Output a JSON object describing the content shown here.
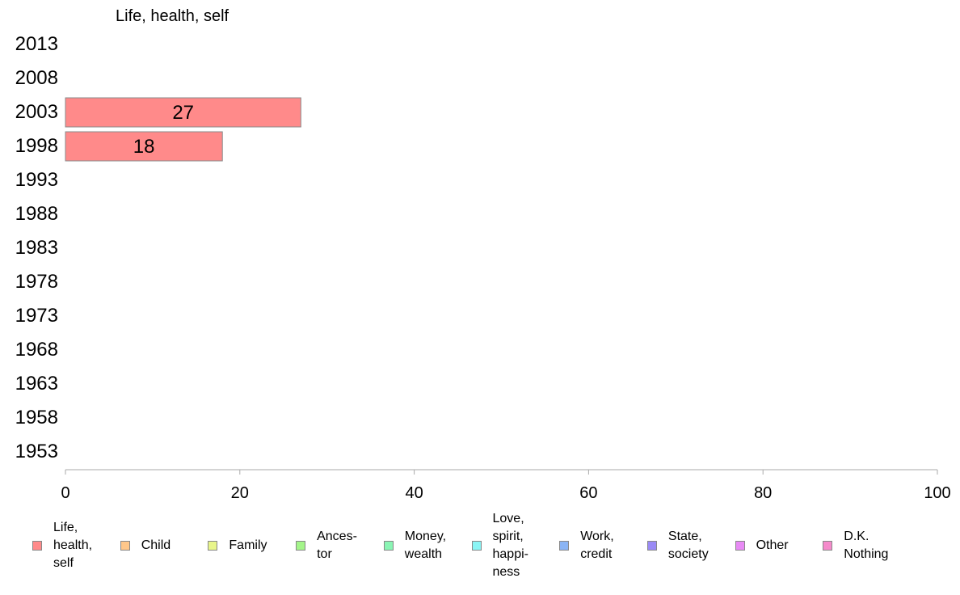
{
  "chart_data": {
    "type": "bar",
    "orientation": "horizontal",
    "title": "Life, health, self",
    "categories": [
      "2013",
      "2008",
      "2003",
      "1998",
      "1993",
      "1988",
      "1983",
      "1978",
      "1973",
      "1968",
      "1963",
      "1958",
      "1953"
    ],
    "series": [
      {
        "name": "Life,\nhealth,\nself",
        "color": "#ff8a8a",
        "values": [
          null,
          null,
          27,
          18,
          null,
          null,
          null,
          null,
          null,
          null,
          null,
          null,
          null
        ]
      }
    ],
    "data_labels": [
      null,
      null,
      "27",
      "18",
      null,
      null,
      null,
      null,
      null,
      null,
      null,
      null,
      null
    ],
    "xlim": [
      0,
      100
    ],
    "xticks": [
      0,
      20,
      40,
      60,
      80,
      100
    ],
    "xtick_labels": [
      "0",
      "20",
      "40",
      "60",
      "80",
      "100"
    ],
    "grid": false,
    "legend_position": "bottom",
    "legend": [
      {
        "label": "Life,\nhealth,\nself",
        "color": "#ff8a8a"
      },
      {
        "label": "Child",
        "color": "#ffc78a"
      },
      {
        "label": "Family",
        "color": "#e8f58a"
      },
      {
        "label": "Ances-\ntor",
        "color": "#a4f58a"
      },
      {
        "label": "Money,\nwealth",
        "color": "#8af5b4"
      },
      {
        "label": "Love,\nspirit,\nhappi-\nness",
        "color": "#8af5f5"
      },
      {
        "label": "Work,\ncredit",
        "color": "#8ab4f5"
      },
      {
        "label": "State,\nsociety",
        "color": "#9a8af5"
      },
      {
        "label": "Other",
        "color": "#e88af5"
      },
      {
        "label": "D.K.\nNothing",
        "color": "#f58acb"
      }
    ]
  }
}
